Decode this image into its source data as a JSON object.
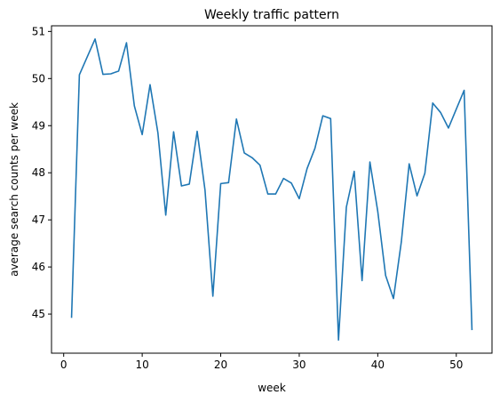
{
  "chart_data": {
    "type": "line",
    "title": "Weekly traffic pattern",
    "xlabel": "week",
    "ylabel": "average search counts per week",
    "xlim": [
      -1.55,
      54.55
    ],
    "ylim": [
      44.17,
      51.12
    ],
    "xticks": [
      0,
      10,
      20,
      30,
      40,
      50
    ],
    "yticks": [
      45,
      46,
      47,
      48,
      49,
      50,
      51
    ],
    "grid": false,
    "line_color": "#1f77b4",
    "series": [
      {
        "x": [
          1,
          2,
          3,
          4,
          5,
          6,
          7,
          8,
          9,
          10,
          11,
          12,
          13,
          14,
          15,
          16,
          17,
          18,
          19,
          20,
          21,
          22,
          23,
          24,
          25,
          26,
          27,
          28,
          29,
          30,
          31,
          32,
          33,
          34,
          35,
          36,
          37,
          38,
          39,
          40,
          41,
          42,
          43,
          44,
          45,
          46,
          47,
          48,
          49,
          50,
          51,
          52
        ],
        "values": [
          44.92,
          50.08,
          50.46,
          50.84,
          50.09,
          50.1,
          50.16,
          50.76,
          49.42,
          48.81,
          49.87,
          48.85,
          47.1,
          48.87,
          47.72,
          47.76,
          48.88,
          47.63,
          45.38,
          47.77,
          47.79,
          49.14,
          48.42,
          48.32,
          48.16,
          47.55,
          47.55,
          47.88,
          47.78,
          47.45,
          48.09,
          48.52,
          49.21,
          49.15,
          44.45,
          47.27,
          48.03,
          45.71,
          48.23,
          47.18,
          45.82,
          45.33,
          46.53,
          48.19,
          47.51,
          47.99,
          49.48,
          49.28,
          48.95,
          49.35,
          49.75,
          44.66
        ]
      }
    ]
  }
}
